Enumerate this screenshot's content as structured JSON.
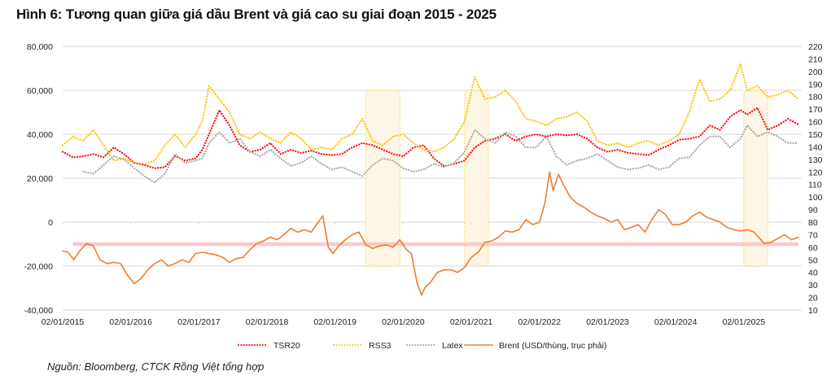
{
  "title": "Hình 6: Tương quan giữa giá dầu Brent và giá cao su giai đoạn 2015 - 2025",
  "source": "Nguồn: Bloomberg, CTCK Rồng Việt tổng hợp",
  "chart_data": {
    "type": "line",
    "title": "Hình 6: Tương quan giữa giá dầu Brent và giá cao su giai đoạn 2015 - 2025",
    "xlabel": "",
    "ylabel_left": "",
    "ylabel_right": "Brent (USD/thùng, trục phải)",
    "x_range": [
      2015.0,
      2025.85
    ],
    "x_ticks": [
      "02/01/2015",
      "02/01/2016",
      "02/01/2017",
      "02/01/2018",
      "02/01/2019",
      "02/01/2020",
      "02/01/2021",
      "02/01/2022",
      "02/01/2023",
      "02/01/2024",
      "02/01/2025"
    ],
    "y_left": {
      "range": [
        -40000,
        80000
      ],
      "ticks": [
        "80,000",
        "60,000",
        "40,000",
        "20,000",
        "0",
        "-20,000",
        "-40,000"
      ],
      "tick_values": [
        80000,
        60000,
        40000,
        20000,
        0,
        -20000,
        -40000
      ]
    },
    "y_right": {
      "range": [
        10,
        220
      ],
      "ticks": [
        "220",
        "210",
        "200",
        "190",
        "180",
        "170",
        "160",
        "150",
        "140",
        "130",
        "120",
        "110",
        "100",
        "90",
        "80",
        "70",
        "60",
        "50",
        "40",
        "30",
        "20",
        "10"
      ],
      "tick_values": [
        220,
        210,
        200,
        190,
        180,
        170,
        160,
        150,
        140,
        130,
        120,
        110,
        100,
        90,
        80,
        70,
        60,
        50,
        40,
        30,
        20,
        10
      ]
    },
    "grid": true,
    "legend_position": "bottom",
    "legend": [
      "TSR20",
      "RSS3",
      "Latex",
      "Brent (USD/thùng, trục phải)"
    ],
    "highlight_band": {
      "axis": "right",
      "range": [
        61,
        64
      ],
      "color": "#f9c4c4",
      "x_range": [
        2015.15,
        2025.8
      ]
    },
    "highlight_periods": [
      {
        "x_range": [
          2019.45,
          2019.95
        ],
        "y_left_range": [
          -20000,
          60000
        ]
      },
      {
        "x_range": [
          2020.9,
          2021.25
        ],
        "y_left_range": [
          -20000,
          60000
        ]
      },
      {
        "x_range": [
          2025.0,
          2025.35
        ],
        "y_left_range": [
          -20000,
          60000
        ]
      }
    ],
    "series": [
      {
        "name": "TSR20",
        "axis": "left",
        "color": "#ff0000",
        "style": "dotted",
        "x": [
          2015.0,
          2015.15,
          2015.3,
          2015.45,
          2015.6,
          2015.75,
          2015.9,
          2016.05,
          2016.2,
          2016.35,
          2016.5,
          2016.65,
          2016.8,
          2016.95,
          2017.05,
          2017.15,
          2017.3,
          2017.45,
          2017.6,
          2017.75,
          2017.9,
          2018.05,
          2018.2,
          2018.35,
          2018.5,
          2018.65,
          2018.8,
          2018.95,
          2019.1,
          2019.25,
          2019.4,
          2019.55,
          2019.7,
          2019.85,
          2020.0,
          2020.15,
          2020.3,
          2020.45,
          2020.6,
          2020.75,
          2020.9,
          2021.05,
          2021.2,
          2021.35,
          2021.5,
          2021.65,
          2021.8,
          2021.95,
          2022.1,
          2022.25,
          2022.4,
          2022.55,
          2022.7,
          2022.85,
          2023.0,
          2023.15,
          2023.3,
          2023.45,
          2023.6,
          2023.75,
          2023.9,
          2024.05,
          2024.2,
          2024.35,
          2024.5,
          2024.65,
          2024.8,
          2024.95,
          2025.05,
          2025.2,
          2025.35,
          2025.5,
          2025.65,
          2025.8
        ],
        "y": [
          32000,
          29500,
          30000,
          31000,
          29500,
          34000,
          31000,
          27000,
          26000,
          24500,
          25000,
          30000,
          28000,
          29000,
          33000,
          40000,
          51000,
          44000,
          35000,
          32000,
          33000,
          36000,
          31000,
          33000,
          31500,
          32500,
          31000,
          30500,
          31000,
          34000,
          36000,
          35000,
          33000,
          31000,
          30000,
          34000,
          35000,
          29000,
          25500,
          26500,
          28000,
          34000,
          37000,
          38000,
          40000,
          37000,
          39000,
          40000,
          39000,
          40000,
          39500,
          40000,
          38000,
          34000,
          32000,
          33000,
          31500,
          31000,
          30500,
          33000,
          35000,
          37500,
          38000,
          39000,
          44000,
          42000,
          48000,
          51000,
          49000,
          52000,
          42000,
          44000,
          47000,
          44500
        ]
      },
      {
        "name": "RSS3",
        "axis": "left",
        "color": "#ffc000",
        "style": "dotted",
        "x": [
          2015.0,
          2015.15,
          2015.3,
          2015.45,
          2015.6,
          2015.75,
          2015.9,
          2016.05,
          2016.2,
          2016.35,
          2016.5,
          2016.65,
          2016.8,
          2016.95,
          2017.05,
          2017.15,
          2017.3,
          2017.45,
          2017.6,
          2017.75,
          2017.9,
          2018.05,
          2018.2,
          2018.35,
          2018.5,
          2018.65,
          2018.8,
          2018.95,
          2019.1,
          2019.25,
          2019.4,
          2019.55,
          2019.7,
          2019.85,
          2020.0,
          2020.15,
          2020.3,
          2020.45,
          2020.6,
          2020.75,
          2020.9,
          2021.05,
          2021.2,
          2021.35,
          2021.5,
          2021.65,
          2021.8,
          2021.95,
          2022.1,
          2022.25,
          2022.4,
          2022.55,
          2022.7,
          2022.85,
          2023.0,
          2023.15,
          2023.3,
          2023.45,
          2023.6,
          2023.75,
          2023.9,
          2024.05,
          2024.2,
          2024.35,
          2024.5,
          2024.65,
          2024.8,
          2024.95,
          2025.05,
          2025.2,
          2025.35,
          2025.5,
          2025.65,
          2025.8
        ],
        "y": [
          35000,
          39000,
          37000,
          42000,
          35000,
          28000,
          29000,
          27000,
          26500,
          28000,
          35000,
          40000,
          34000,
          40000,
          46000,
          62000,
          56000,
          50000,
          40000,
          38000,
          41000,
          38000,
          36000,
          41000,
          38000,
          33000,
          34000,
          33000,
          38000,
          40000,
          47000,
          37000,
          35000,
          39000,
          40000,
          36000,
          33000,
          32000,
          34000,
          38000,
          46000,
          66000,
          56000,
          57000,
          60000,
          55000,
          47000,
          46000,
          44000,
          47000,
          48000,
          50000,
          46000,
          37000,
          35000,
          36000,
          34000,
          36000,
          37000,
          35000,
          37000,
          40000,
          50000,
          65000,
          55000,
          56000,
          60000,
          72000,
          60000,
          62000,
          57000,
          58000,
          60000,
          56000
        ]
      },
      {
        "name": "Latex",
        "axis": "left",
        "color": "#a6a6a6",
        "style": "dotted",
        "x": [
          2015.3,
          2015.45,
          2015.6,
          2015.75,
          2015.9,
          2016.05,
          2016.2,
          2016.35,
          2016.5,
          2016.65,
          2016.8,
          2016.95,
          2017.05,
          2017.15,
          2017.3,
          2017.45,
          2017.6,
          2017.75,
          2017.9,
          2018.05,
          2018.2,
          2018.35,
          2018.5,
          2018.65,
          2018.8,
          2018.95,
          2019.1,
          2019.25,
          2019.4,
          2019.55,
          2019.7,
          2019.85,
          2020.0,
          2020.15,
          2020.3,
          2020.45,
          2020.6,
          2020.75,
          2020.9,
          2021.05,
          2021.2,
          2021.35,
          2021.5,
          2021.65,
          2021.8,
          2021.95,
          2022.1,
          2022.25,
          2022.4,
          2022.55,
          2022.7,
          2022.85,
          2023.0,
          2023.15,
          2023.3,
          2023.45,
          2023.6,
          2023.75,
          2023.9,
          2024.05,
          2024.2,
          2024.35,
          2024.5,
          2024.65,
          2024.8,
          2024.95,
          2025.05,
          2025.2,
          2025.35,
          2025.5,
          2025.65,
          2025.8
        ],
        "y": [
          23000,
          22000,
          26000,
          30000,
          28500,
          24500,
          21000,
          18000,
          22000,
          31000,
          27000,
          28000,
          29000,
          36000,
          41000,
          36000,
          38000,
          32000,
          30000,
          33000,
          29000,
          25500,
          27000,
          30000,
          26500,
          24000,
          25000,
          23000,
          21000,
          26000,
          29000,
          28000,
          24500,
          23000,
          24000,
          26500,
          25000,
          27000,
          32000,
          42000,
          38000,
          36000,
          41000,
          39000,
          34000,
          34000,
          39000,
          30000,
          26000,
          28000,
          29000,
          31000,
          28000,
          25000,
          24000,
          24500,
          26000,
          24000,
          25000,
          29000,
          29500,
          35000,
          39000,
          39000,
          34000,
          38000,
          44000,
          39000,
          41000,
          39000,
          36000,
          36000
        ]
      },
      {
        "name": "Brent (USD/thùng, trục phải)",
        "axis": "right",
        "color": "#ed7d31",
        "style": "solid",
        "x": [
          2015.0,
          2015.08,
          2015.16,
          2015.25,
          2015.35,
          2015.45,
          2015.55,
          2015.65,
          2015.75,
          2015.85,
          2015.95,
          2016.05,
          2016.15,
          2016.25,
          2016.35,
          2016.45,
          2016.55,
          2016.65,
          2016.75,
          2016.85,
          2016.95,
          2017.05,
          2017.15,
          2017.25,
          2017.35,
          2017.45,
          2017.55,
          2017.65,
          2017.75,
          2017.85,
          2017.95,
          2018.05,
          2018.15,
          2018.25,
          2018.35,
          2018.45,
          2018.55,
          2018.65,
          2018.75,
          2018.82,
          2018.9,
          2018.97,
          2019.05,
          2019.15,
          2019.25,
          2019.35,
          2019.45,
          2019.55,
          2019.65,
          2019.75,
          2019.85,
          2019.95,
          2020.05,
          2020.12,
          2020.2,
          2020.27,
          2020.32,
          2020.4,
          2020.5,
          2020.6,
          2020.7,
          2020.8,
          2020.9,
          2021.0,
          2021.1,
          2021.2,
          2021.3,
          2021.4,
          2021.5,
          2021.6,
          2021.7,
          2021.8,
          2021.9,
          2022.0,
          2022.08,
          2022.15,
          2022.2,
          2022.28,
          2022.35,
          2022.45,
          2022.55,
          2022.65,
          2022.75,
          2022.85,
          2022.95,
          2023.05,
          2023.15,
          2023.25,
          2023.35,
          2023.45,
          2023.55,
          2023.65,
          2023.75,
          2023.85,
          2023.95,
          2024.05,
          2024.15,
          2024.25,
          2024.35,
          2024.45,
          2024.55,
          2024.65,
          2024.75,
          2024.85,
          2024.95,
          2025.05,
          2025.15,
          2025.25,
          2025.3,
          2025.4,
          2025.5,
          2025.6,
          2025.7,
          2025.8
        ],
        "y": [
          57,
          56,
          50,
          57,
          63,
          61,
          50,
          47,
          48,
          47,
          38,
          31,
          35,
          42,
          47,
          50,
          45,
          47,
          50,
          48,
          55,
          56,
          55,
          54,
          52,
          48,
          51,
          52,
          58,
          63,
          65,
          68,
          66,
          70,
          75,
          72,
          74,
          72,
          80,
          85,
          60,
          55,
          61,
          66,
          70,
          72,
          62,
          59,
          61,
          62,
          60,
          66,
          58,
          55,
          32,
          22,
          28,
          32,
          40,
          42,
          42,
          40,
          44,
          52,
          56,
          64,
          65,
          68,
          73,
          72,
          74,
          82,
          78,
          80,
          95,
          120,
          105,
          118,
          110,
          100,
          95,
          92,
          88,
          85,
          83,
          80,
          82,
          74,
          76,
          78,
          72,
          82,
          90,
          86,
          78,
          78,
          80,
          85,
          88,
          84,
          82,
          80,
          76,
          74,
          73,
          74,
          72,
          66,
          63,
          64,
          67,
          70,
          66,
          68
        ]
      }
    ]
  }
}
